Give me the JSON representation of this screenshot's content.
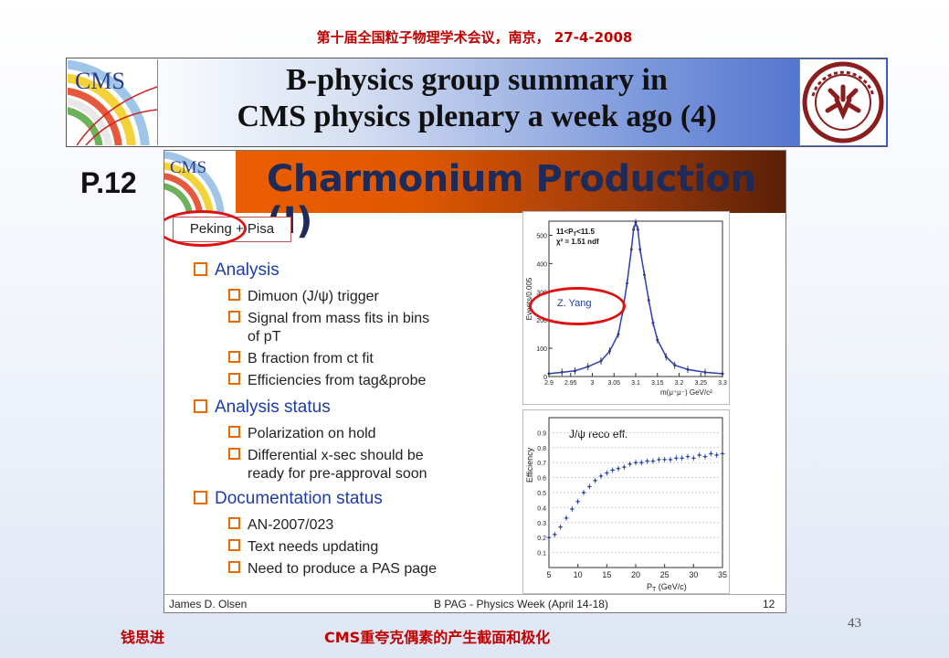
{
  "conference": "第十届全国粒子物理学术会议，南京， 27-4-2008",
  "title_line1": "B-physics group summary in",
  "title_line2": "CMS physics plenary a week ago (4)",
  "page_label": "P.12",
  "slide": {
    "title": "Charmonium Production (I)",
    "tag": "Peking + Pisa",
    "cms_logo_text": "CMS",
    "sections": [
      {
        "heading": "Analysis",
        "items": [
          "Dimuon (J/ψ) trigger",
          "Signal from mass fits in bins",
          "of pT",
          "B fraction from ct fit",
          "Efficiencies from tag&probe"
        ]
      },
      {
        "heading": "Analysis status",
        "items": [
          "Polarization on hold",
          "Differential x-sec should be",
          "ready for pre-approval soon"
        ]
      },
      {
        "heading": "Documentation status",
        "items": [
          "AN-2007/023",
          "Text needs updating",
          "Need to produce a PAS page"
        ]
      }
    ],
    "footer_left": "James D. Olsen",
    "footer_center": "B PAG - Physics Week (April 14-18)",
    "footer_right": "12",
    "plot1": {
      "ylabel": "Events/0.005",
      "xlabel": "m(μ⁺μ⁻)  GeV/c²",
      "legend1": "11<P",
      "legend1_sub": "T",
      "legend1_tail": "<11.5",
      "legend2": "χ² = 1.51 ndf",
      "annotation": "Z. Yang",
      "yticks": [
        "500",
        "400",
        "300",
        "200",
        "100",
        "0"
      ],
      "xticks": [
        "2.9",
        "2.95",
        "3",
        "3.05",
        "3.1",
        "3.15",
        "3.2",
        "3.25",
        "3.3"
      ]
    },
    "plot2": {
      "ylabel": "Efficiency",
      "xlabel": "P",
      "xlabel_sub": "T",
      "xlabel_tail": " (GeV/c)",
      "legend": "J/ψ reco eff.",
      "yticks": [
        "0.9",
        "0.8",
        "0.7",
        "0.6",
        "0.5",
        "0.4",
        "0.3",
        "0.2",
        "0.1"
      ],
      "xticks": [
        "5",
        "10",
        "15",
        "20",
        "25",
        "30",
        "35"
      ]
    }
  },
  "chart_data": [
    {
      "type": "scatter",
      "x": [
        2.9,
        2.93,
        2.96,
        2.99,
        3.02,
        3.04,
        3.06,
        3.07,
        3.08,
        3.09,
        3.095,
        3.1,
        3.105,
        3.11,
        3.12,
        3.13,
        3.14,
        3.15,
        3.17,
        3.19,
        3.22,
        3.26,
        3.3
      ],
      "y": [
        10,
        15,
        20,
        35,
        55,
        90,
        150,
        230,
        330,
        450,
        520,
        545,
        520,
        450,
        360,
        270,
        190,
        130,
        70,
        40,
        25,
        15,
        10
      ],
      "ylim": [
        0,
        550
      ],
      "xlim": [
        2.9,
        3.3
      ]
    },
    {
      "type": "scatter",
      "x": [
        5,
        6,
        7,
        8,
        9,
        10,
        11,
        12,
        13,
        14,
        15,
        16,
        17,
        18,
        19,
        20,
        21,
        22,
        23,
        24,
        25,
        26,
        27,
        28,
        29,
        30,
        31,
        32,
        33,
        34,
        35
      ],
      "y": [
        0.2,
        0.22,
        0.27,
        0.33,
        0.39,
        0.44,
        0.5,
        0.54,
        0.58,
        0.61,
        0.63,
        0.65,
        0.66,
        0.67,
        0.69,
        0.7,
        0.7,
        0.71,
        0.71,
        0.72,
        0.72,
        0.72,
        0.73,
        0.73,
        0.74,
        0.73,
        0.75,
        0.74,
        0.76,
        0.75,
        0.76
      ],
      "ylim": [
        0,
        1
      ],
      "xlim": [
        5,
        35
      ]
    }
  ],
  "footer_name": "钱思进",
  "footer_topic": "CMS重夸克偶素的产生截面和极化",
  "page_number": "43"
}
